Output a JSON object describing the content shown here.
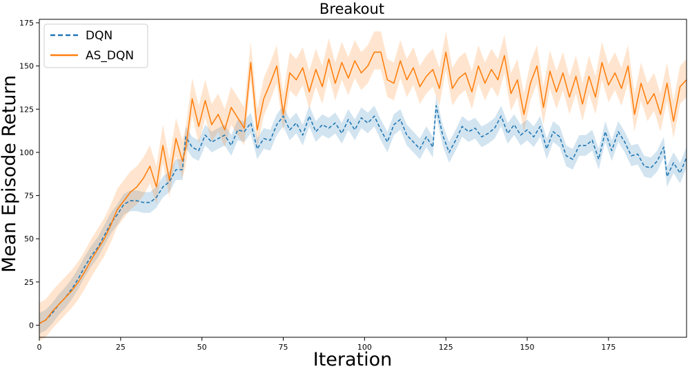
{
  "chart_data": {
    "type": "line",
    "title": "Breakout",
    "xlabel": "Iteration",
    "ylabel": "Mean Episode Return",
    "xlim": [
      0,
      199
    ],
    "ylim": [
      -7,
      177
    ],
    "xticks": [
      0,
      25,
      50,
      75,
      100,
      125,
      150,
      175
    ],
    "yticks": [
      0,
      25,
      50,
      75,
      100,
      125,
      150,
      175
    ],
    "grid": false,
    "legend_position": "top-left",
    "series": [
      {
        "name": "DQN",
        "color": "#1f77b4",
        "linestyle": "dashed",
        "band_opacity": 0.2,
        "points": [
          [
            0,
            1
          ],
          [
            2,
            3
          ],
          [
            4,
            7
          ],
          [
            6,
            12
          ],
          [
            8,
            16
          ],
          [
            10,
            21
          ],
          [
            12,
            27
          ],
          [
            14,
            34
          ],
          [
            16,
            40
          ],
          [
            18,
            45
          ],
          [
            20,
            52
          ],
          [
            22,
            59
          ],
          [
            24,
            64
          ],
          [
            26,
            70
          ],
          [
            28,
            72
          ],
          [
            30,
            72
          ],
          [
            32,
            71
          ],
          [
            34,
            71
          ],
          [
            36,
            74
          ],
          [
            38,
            80
          ],
          [
            40,
            83
          ],
          [
            42,
            90
          ],
          [
            44,
            90
          ],
          [
            45,
            109
          ],
          [
            47,
            103
          ],
          [
            49,
            101
          ],
          [
            51,
            110
          ],
          [
            53,
            106
          ],
          [
            55,
            108
          ],
          [
            57,
            110
          ],
          [
            59,
            104
          ],
          [
            61,
            113
          ],
          [
            63,
            112
          ],
          [
            65,
            117
          ],
          [
            67,
            102
          ],
          [
            69,
            108
          ],
          [
            71,
            107
          ],
          [
            73,
            116
          ],
          [
            75,
            121
          ],
          [
            77,
            113
          ],
          [
            79,
            117
          ],
          [
            81,
            110
          ],
          [
            83,
            121
          ],
          [
            85,
            112
          ],
          [
            87,
            116
          ],
          [
            89,
            114
          ],
          [
            91,
            117
          ],
          [
            93,
            111
          ],
          [
            95,
            119
          ],
          [
            97,
            113
          ],
          [
            99,
            120
          ],
          [
            101,
            117
          ],
          [
            103,
            121
          ],
          [
            105,
            113
          ],
          [
            107,
            106
          ],
          [
            109,
            116
          ],
          [
            111,
            119
          ],
          [
            113,
            110
          ],
          [
            115,
            106
          ],
          [
            117,
            102
          ],
          [
            119,
            109
          ],
          [
            121,
            103
          ],
          [
            122,
            127
          ],
          [
            124,
            110
          ],
          [
            126,
            100
          ],
          [
            128,
            107
          ],
          [
            130,
            115
          ],
          [
            132,
            112
          ],
          [
            134,
            114
          ],
          [
            136,
            109
          ],
          [
            138,
            111
          ],
          [
            140,
            114
          ],
          [
            142,
            121
          ],
          [
            144,
            111
          ],
          [
            146,
            116
          ],
          [
            148,
            110
          ],
          [
            150,
            113
          ],
          [
            152,
            109
          ],
          [
            154,
            115
          ],
          [
            156,
            102
          ],
          [
            158,
            112
          ],
          [
            160,
            109
          ],
          [
            162,
            98
          ],
          [
            164,
            96
          ],
          [
            166,
            104
          ],
          [
            168,
            104
          ],
          [
            170,
            107
          ],
          [
            172,
            96
          ],
          [
            174,
            112
          ],
          [
            176,
            101
          ],
          [
            178,
            112
          ],
          [
            180,
            106
          ],
          [
            182,
            98
          ],
          [
            184,
            99
          ],
          [
            186,
            92
          ],
          [
            188,
            91
          ],
          [
            190,
            95
          ],
          [
            192,
            103
          ],
          [
            193,
            86
          ],
          [
            195,
            94
          ],
          [
            197,
            88
          ],
          [
            199,
            97
          ]
        ],
        "band": [
          6,
          6
        ]
      },
      {
        "name": "AS_DQN",
        "color": "#ff7f0e",
        "linestyle": "solid",
        "band_opacity": 0.2,
        "points": [
          [
            0,
            1
          ],
          [
            2,
            3
          ],
          [
            4,
            8
          ],
          [
            6,
            12
          ],
          [
            8,
            16
          ],
          [
            10,
            20
          ],
          [
            12,
            25
          ],
          [
            14,
            31
          ],
          [
            16,
            38
          ],
          [
            18,
            44
          ],
          [
            20,
            50
          ],
          [
            22,
            58
          ],
          [
            24,
            67
          ],
          [
            26,
            72
          ],
          [
            28,
            77
          ],
          [
            30,
            80
          ],
          [
            32,
            85
          ],
          [
            34,
            92
          ],
          [
            36,
            80
          ],
          [
            38,
            104
          ],
          [
            40,
            84
          ],
          [
            42,
            108
          ],
          [
            44,
            95
          ],
          [
            45,
            102
          ],
          [
            47,
            131
          ],
          [
            49,
            115
          ],
          [
            51,
            130
          ],
          [
            53,
            116
          ],
          [
            55,
            122
          ],
          [
            57,
            113
          ],
          [
            59,
            126
          ],
          [
            61,
            120
          ],
          [
            63,
            114
          ],
          [
            65,
            152
          ],
          [
            67,
            113
          ],
          [
            69,
            131
          ],
          [
            71,
            140
          ],
          [
            73,
            150
          ],
          [
            75,
            122
          ],
          [
            77,
            146
          ],
          [
            79,
            142
          ],
          [
            81,
            149
          ],
          [
            83,
            135
          ],
          [
            85,
            148
          ],
          [
            87,
            138
          ],
          [
            89,
            154
          ],
          [
            91,
            140
          ],
          [
            93,
            152
          ],
          [
            95,
            143
          ],
          [
            97,
            153
          ],
          [
            99,
            146
          ],
          [
            101,
            150
          ],
          [
            103,
            158
          ],
          [
            105,
            158
          ],
          [
            107,
            142
          ],
          [
            109,
            140
          ],
          [
            111,
            153
          ],
          [
            113,
            142
          ],
          [
            115,
            149
          ],
          [
            117,
            138
          ],
          [
            119,
            144
          ],
          [
            121,
            148
          ],
          [
            123,
            137
          ],
          [
            125,
            158
          ],
          [
            127,
            137
          ],
          [
            129,
            143
          ],
          [
            131,
            146
          ],
          [
            133,
            135
          ],
          [
            135,
            150
          ],
          [
            137,
            140
          ],
          [
            139,
            148
          ],
          [
            141,
            142
          ],
          [
            143,
            156
          ],
          [
            145,
            134
          ],
          [
            147,
            142
          ],
          [
            149,
            122
          ],
          [
            151,
            140
          ],
          [
            153,
            150
          ],
          [
            155,
            126
          ],
          [
            157,
            147
          ],
          [
            159,
            135
          ],
          [
            161,
            146
          ],
          [
            163,
            132
          ],
          [
            165,
            144
          ],
          [
            167,
            128
          ],
          [
            169,
            144
          ],
          [
            171,
            132
          ],
          [
            173,
            152
          ],
          [
            175,
            139
          ],
          [
            177,
            146
          ],
          [
            179,
            137
          ],
          [
            181,
            150
          ],
          [
            183,
            122
          ],
          [
            185,
            140
          ],
          [
            187,
            128
          ],
          [
            189,
            134
          ],
          [
            191,
            122
          ],
          [
            193,
            140
          ],
          [
            195,
            118
          ],
          [
            197,
            138
          ],
          [
            199,
            142
          ]
        ],
        "band": [
          12,
          10
        ]
      }
    ]
  }
}
